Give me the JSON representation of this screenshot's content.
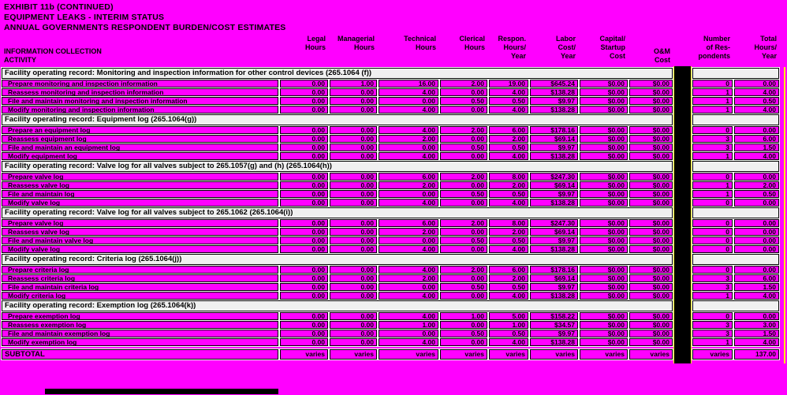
{
  "page": {
    "titles": [
      "EXHIBIT 11b (CONTINUED)",
      "EQUIPMENT LEAKS - INTERIM STATUS",
      "ANNUAL GOVERNMENTS RESPONDENT BURDEN/COST ESTIMATES"
    ],
    "colors": {
      "background": "#FF00FF",
      "section_bar": "#F0F0F0",
      "separator_column": "#000000",
      "separator_edge": "#FFFF00",
      "grid_line": "#FFFFFF"
    }
  },
  "table": {
    "row_header": [
      "INFORMATION COLLECTION",
      "ACTIVITY"
    ],
    "columns": [
      [
        "Legal",
        "Hours"
      ],
      [
        "Managerial",
        "Hours"
      ],
      [
        "Technical",
        "Hours"
      ],
      [
        "Clerical",
        "Hours"
      ],
      [
        "Respon.",
        "Hours/",
        "Year"
      ],
      [
        "Labor",
        "Cost/",
        "Year"
      ],
      [
        "Capital/",
        "Startup",
        "Cost"
      ],
      [
        "O&M",
        "Cost"
      ],
      [
        "Number",
        "of Res-",
        "pondents"
      ],
      [
        "Total",
        "Hours/",
        "Year"
      ]
    ],
    "sections": [
      {
        "header": "Facility operating record: Monitoring and inspection information for other control devices (265.1064 (f))",
        "rows": [
          {
            "activity": "Prepare monitoring and inspection information",
            "values": [
              "0.00",
              "1.00",
              "16.00",
              "2.00",
              "19.00",
              "$645.24",
              "$0.00",
              "$0.00",
              "0",
              "0.00"
            ]
          },
          {
            "activity": "Reassess monitoring and inspection information",
            "values": [
              "0.00",
              "0.00",
              "4.00",
              "0.00",
              "4.00",
              "$138.28",
              "$0.00",
              "$0.00",
              "1",
              "4.00"
            ]
          },
          {
            "activity": "File and maintain monitoring and inspection information",
            "values": [
              "0.00",
              "0.00",
              "0.00",
              "0.50",
              "0.50",
              "$9.97",
              "$0.00",
              "$0.00",
              "1",
              "0.50"
            ]
          },
          {
            "activity": "Modify monitoring and inspection information",
            "values": [
              "0.00",
              "0.00",
              "4.00",
              "0.00",
              "4.00",
              "$138.28",
              "$0.00",
              "$0.00",
              "1",
              "4.00"
            ]
          }
        ]
      },
      {
        "header": "Facility operating record:  Equipment log (265.1064(g))",
        "rows": [
          {
            "activity": "Prepare an equipment log",
            "values": [
              "0.00",
              "0.00",
              "4.00",
              "2.00",
              "6.00",
              "$178.16",
              "$0.00",
              "$0.00",
              "0",
              "0.00"
            ]
          },
          {
            "activity": "Reassess equipment log",
            "values": [
              "0.00",
              "0.00",
              "2.00",
              "0.00",
              "2.00",
              "$69.14",
              "$0.00",
              "$0.00",
              "3",
              "6.00"
            ]
          },
          {
            "activity": "File and maintain an equipment log",
            "values": [
              "0.00",
              "0.00",
              "0.00",
              "0.50",
              "0.50",
              "$9.97",
              "$0.00",
              "$0.00",
              "3",
              "1.50"
            ]
          },
          {
            "activity": "Modify equipment log",
            "values": [
              "0.00",
              "0.00",
              "4.00",
              "0.00",
              "4.00",
              "$138.28",
              "$0.00",
              "$0.00",
              "1",
              "4.00"
            ]
          }
        ]
      },
      {
        "header": "Facility operating record: Valve log for all valves subject to 265.1057(g) and (h) (265.1064(h))",
        "rows": [
          {
            "activity": "Prepare valve log",
            "values": [
              "0.00",
              "0.00",
              "6.00",
              "2.00",
              "8.00",
              "$247.30",
              "$0.00",
              "$0.00",
              "0",
              "0.00"
            ]
          },
          {
            "activity": "Reassess valve log",
            "values": [
              "0.00",
              "0.00",
              "2.00",
              "0.00",
              "2.00",
              "$69.14",
              "$0.00",
              "$0.00",
              "1",
              "2.00"
            ]
          },
          {
            "activity": "File and maintain log",
            "values": [
              "0.00",
              "0.00",
              "0.00",
              "0.50",
              "0.50",
              "$9.97",
              "$0.00",
              "$0.00",
              "1",
              "0.50"
            ]
          },
          {
            "activity": "Modify valve log",
            "values": [
              "0.00",
              "0.00",
              "4.00",
              "0.00",
              "4.00",
              "$138.28",
              "$0.00",
              "$0.00",
              "0",
              "0.00"
            ]
          }
        ]
      },
      {
        "header": "Facility operating record: Valve log for all valves subject to 265.1062 (265.1064(i))",
        "rows": [
          {
            "activity": "Prepare valve log",
            "values": [
              "0.00",
              "0.00",
              "6.00",
              "2.00",
              "8.00",
              "$247.30",
              "$0.00",
              "$0.00",
              "0",
              "0.00"
            ]
          },
          {
            "activity": "Reassess valve log",
            "values": [
              "0.00",
              "0.00",
              "2.00",
              "0.00",
              "2.00",
              "$69.14",
              "$0.00",
              "$0.00",
              "0",
              "0.00"
            ]
          },
          {
            "activity": "File and maintain valve log",
            "values": [
              "0.00",
              "0.00",
              "0.00",
              "0.50",
              "0.50",
              "$9.97",
              "$0.00",
              "$0.00",
              "0",
              "0.00"
            ]
          },
          {
            "activity": "Modify valve log",
            "values": [
              "0.00",
              "0.00",
              "4.00",
              "0.00",
              "4.00",
              "$138.28",
              "$0.00",
              "$0.00",
              "0",
              "0.00"
            ]
          }
        ]
      },
      {
        "header": "Facility operating record: Criteria log (265.1064(j))",
        "rows": [
          {
            "activity": "Prepare criteria log",
            "values": [
              "0.00",
              "0.00",
              "4.00",
              "2.00",
              "6.00",
              "$178.16",
              "$0.00",
              "$0.00",
              "0",
              "0.00"
            ]
          },
          {
            "activity": "Reassess criteria log",
            "values": [
              "0.00",
              "0.00",
              "2.00",
              "0.00",
              "2.00",
              "$69.14",
              "$0.00",
              "$0.00",
              "3",
              "6.00"
            ]
          },
          {
            "activity": "File and maintain criteria log",
            "values": [
              "0.00",
              "0.00",
              "0.00",
              "0.50",
              "0.50",
              "$9.97",
              "$0.00",
              "$0.00",
              "3",
              "1.50"
            ]
          },
          {
            "activity": "Modify criteria log",
            "values": [
              "0.00",
              "0.00",
              "4.00",
              "0.00",
              "4.00",
              "$138.28",
              "$0.00",
              "$0.00",
              "1",
              "4.00"
            ]
          }
        ]
      },
      {
        "header": "Facility operating record: Exemption log (265.1064(k))",
        "rows": [
          {
            "activity": "Prepare exemption log",
            "values": [
              "0.00",
              "0.00",
              "4.00",
              "1.00",
              "5.00",
              "$158.22",
              "$0.00",
              "$0.00",
              "0",
              "0.00"
            ]
          },
          {
            "activity": "Reassess exemption log",
            "values": [
              "0.00",
              "0.00",
              "1.00",
              "0.00",
              "1.00",
              "$34.57",
              "$0.00",
              "$0.00",
              "3",
              "3.00"
            ]
          },
          {
            "activity": "File and maintain exemption log",
            "values": [
              "0.00",
              "0.00",
              "0.00",
              "0.50",
              "0.50",
              "$9.97",
              "$0.00",
              "$0.00",
              "3",
              "1.50"
            ]
          },
          {
            "activity": "Modify exemption log",
            "values": [
              "0.00",
              "0.00",
              "4.00",
              "0.00",
              "4.00",
              "$138.28",
              "$0.00",
              "$0.00",
              "1",
              "4.00"
            ]
          }
        ]
      }
    ],
    "subtotal": {
      "label": "SUBTOTAL",
      "values": [
        "varies",
        "varies",
        "varies",
        "varies",
        "varies",
        "varies",
        "varies",
        "varies",
        "varies",
        "137.00"
      ]
    }
  }
}
